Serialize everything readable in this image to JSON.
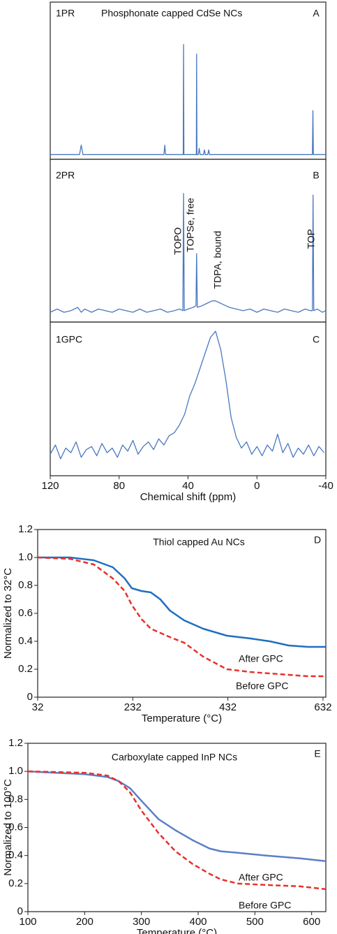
{
  "chart_data": [
    {
      "type": "line",
      "color": "#4a78c0",
      "ylim": [
        0,
        100
      ],
      "annotations": [
        "1PR",
        "Phosphonate capped CdSe NCs",
        "A"
      ],
      "x": [
        120,
        103,
        102,
        101,
        60,
        54,
        53.5,
        53,
        44,
        42.8,
        42.6,
        42.4,
        36,
        35.2,
        35,
        34.8,
        34,
        33.5,
        33,
        31,
        30.5,
        30,
        28.5,
        28,
        27.5,
        0,
        -31,
        -32.2,
        -32.5,
        -32.8,
        -40
      ],
      "values": [
        3,
        3,
        9,
        3,
        3,
        3,
        9,
        3,
        3,
        3,
        73,
        3,
        3,
        3,
        67,
        3,
        3,
        7,
        3,
        3,
        6,
        3,
        3,
        6,
        3,
        3,
        3,
        3,
        31,
        3,
        3
      ]
    },
    {
      "type": "line",
      "color": "#4a78c0",
      "ylim": [
        0,
        100
      ],
      "annotations": [
        "2PR",
        "B",
        "TOPO",
        "TOPSe, free",
        "TDPA, bound",
        "TOP"
      ],
      "x": [
        120,
        116,
        112,
        108,
        104,
        102,
        100,
        96,
        92,
        88,
        84,
        80,
        76,
        72,
        68,
        64,
        60,
        56,
        52,
        48,
        45,
        43,
        42.6,
        42.2,
        40,
        37,
        35.4,
        35,
        34.6,
        32,
        30,
        28,
        26,
        24,
        22,
        20,
        18,
        16,
        12,
        8,
        4,
        0,
        -4,
        -8,
        -12,
        -16,
        -20,
        -24,
        -28,
        -31,
        -32.2,
        -32.6,
        -33,
        -35,
        -38,
        -40
      ],
      "values": [
        6,
        8,
        6,
        7,
        9,
        6,
        8,
        6,
        8,
        7,
        6,
        8,
        7,
        6,
        8,
        6,
        7,
        8,
        6,
        7,
        8,
        7,
        79,
        7,
        8,
        9,
        10,
        42,
        9,
        10,
        11,
        12,
        13,
        13,
        12,
        11,
        10,
        9,
        8,
        7,
        8,
        6,
        8,
        7,
        6,
        8,
        7,
        6,
        8,
        7,
        7,
        78,
        7,
        8,
        6,
        7
      ]
    },
    {
      "type": "line",
      "color": "#4a78c0",
      "ylim": [
        0,
        100
      ],
      "annotations": [
        "1GPC",
        "C"
      ],
      "xlabel": "Chemical shift (ppm)",
      "xlim": [
        120,
        -40
      ],
      "xticks": [
        120,
        80,
        40,
        0,
        -40
      ],
      "x": [
        120,
        117,
        114,
        111,
        108,
        105,
        102,
        99,
        96,
        93,
        90,
        87,
        84,
        81,
        78,
        75,
        72,
        69,
        66,
        63,
        60,
        57,
        54,
        51,
        48,
        45,
        42,
        39,
        36,
        33,
        30,
        27,
        24,
        21,
        18,
        15,
        12,
        9,
        6,
        3,
        0,
        -3,
        -6,
        -9,
        -12,
        -15,
        -18,
        -21,
        -24,
        -27,
        -30,
        -33,
        -36,
        -39
      ],
      "values": [
        14,
        20,
        11,
        18,
        15,
        22,
        12,
        17,
        19,
        13,
        21,
        15,
        18,
        12,
        20,
        16,
        23,
        14,
        19,
        22,
        17,
        24,
        20,
        26,
        28,
        33,
        40,
        52,
        60,
        70,
        80,
        90,
        94,
        82,
        62,
        38,
        25,
        18,
        22,
        14,
        19,
        13,
        20,
        16,
        27,
        15,
        21,
        12,
        18,
        14,
        20,
        13,
        19,
        15
      ]
    },
    {
      "type": "line",
      "annotations": [
        "Thiol capped Au NCs",
        "D",
        "After GPC",
        "Before GPC"
      ],
      "xlabel": "Temperature (°C)",
      "ylabel": "Normalized to 32°C",
      "xlim": [
        32,
        638
      ],
      "xticks": [
        32,
        232,
        432,
        632
      ],
      "ylim": [
        0,
        1.2
      ],
      "yticks": [
        0,
        0.2,
        0.4,
        0.6,
        0.8,
        {
          "value": 1,
          "label": "1.0"
        },
        1.2
      ],
      "x": [
        32,
        100,
        150,
        190,
        215,
        230,
        250,
        270,
        290,
        310,
        340,
        380,
        430,
        480,
        520,
        560,
        600,
        638
      ],
      "series": [
        {
          "name": "After GPC",
          "color": "#1f6fc0",
          "linestyle": "solid",
          "values": [
            1.0,
            1.0,
            0.98,
            0.93,
            0.85,
            0.78,
            0.76,
            0.75,
            0.7,
            0.62,
            0.55,
            0.49,
            0.44,
            0.42,
            0.4,
            0.37,
            0.36,
            0.36
          ]
        },
        {
          "name": "Before GPC",
          "color": "#e8302a",
          "linestyle": "dashed",
          "values": [
            1.0,
            0.99,
            0.95,
            0.85,
            0.76,
            0.66,
            0.56,
            0.49,
            0.46,
            0.43,
            0.39,
            0.29,
            0.2,
            0.18,
            0.17,
            0.16,
            0.15,
            0.15
          ]
        }
      ]
    },
    {
      "type": "line",
      "annotations": [
        "Carboxylate capped InP NCs",
        "E",
        "After GPC",
        "Before GPC"
      ],
      "xlabel": "Temperature (°C)",
      "ylabel": "Normalized to 100°C",
      "xlim": [
        100,
        625
      ],
      "xticks": [
        100,
        200,
        300,
        400,
        500,
        600
      ],
      "ylim": [
        0,
        1.2
      ],
      "yticks": [
        0,
        0.2,
        0.4,
        0.6,
        0.8,
        {
          "value": 1,
          "label": "1.0"
        },
        1.2
      ],
      "x": [
        100,
        200,
        240,
        260,
        280,
        300,
        330,
        360,
        390,
        420,
        440,
        470,
        520,
        580,
        625
      ],
      "series": [
        {
          "name": "After GPC",
          "color": "#5b7fc7",
          "linestyle": "solid",
          "values": [
            1.0,
            0.98,
            0.96,
            0.93,
            0.88,
            0.79,
            0.66,
            0.58,
            0.51,
            0.45,
            0.43,
            0.42,
            0.4,
            0.38,
            0.36
          ]
        },
        {
          "name": "Before GPC",
          "color": "#e8302a",
          "linestyle": "dashed",
          "values": [
            1.0,
            0.99,
            0.97,
            0.93,
            0.85,
            0.72,
            0.56,
            0.43,
            0.34,
            0.27,
            0.23,
            0.2,
            0.19,
            0.18,
            0.16
          ]
        }
      ]
    }
  ]
}
